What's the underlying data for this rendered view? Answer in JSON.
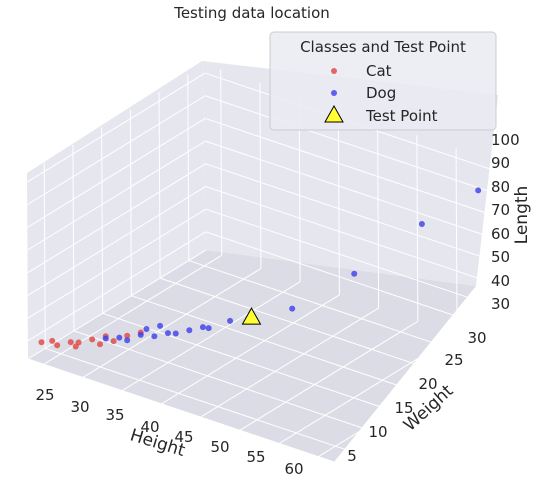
{
  "chart_data": {
    "type": "scatter",
    "projection": "3d",
    "title": "Testing data location",
    "xlabel": "Height",
    "ylabel": "Weight",
    "zlabel": "Length",
    "x_ticks": [
      "25",
      "30",
      "35",
      "40",
      "45",
      "50",
      "55",
      "60"
    ],
    "y_ticks": [
      "5",
      "10",
      "15",
      "20",
      "25",
      "30"
    ],
    "z_ticks": [
      "30",
      "40",
      "50",
      "60",
      "70",
      "80",
      "90",
      "100"
    ],
    "xlim": [
      23,
      62
    ],
    "ylim": [
      2,
      33
    ],
    "zlim": [
      22,
      104
    ],
    "grid": true,
    "legend": {
      "title": "Classes and Test Point",
      "position": "top-right",
      "entries": [
        "Cat",
        "Dog",
        "Test Point"
      ]
    },
    "series": [
      {
        "name": "Cat",
        "color": "#e0453f",
        "marker": "circle",
        "points": [
          {
            "x": 24,
            "y": 3,
            "z": 29
          },
          {
            "x": 25,
            "y": 3.5,
            "z": 30
          },
          {
            "x": 26,
            "y": 3,
            "z": 30
          },
          {
            "x": 27,
            "y": 4,
            "z": 31
          },
          {
            "x": 28,
            "y": 4,
            "z": 32
          },
          {
            "x": 28,
            "y": 3.5,
            "z": 31
          },
          {
            "x": 29,
            "y": 5,
            "z": 33
          },
          {
            "x": 30,
            "y": 5,
            "z": 32
          },
          {
            "x": 30,
            "y": 6,
            "z": 34
          },
          {
            "x": 31,
            "y": 6,
            "z": 33
          },
          {
            "x": 32,
            "y": 7,
            "z": 35
          },
          {
            "x": 33,
            "y": 8,
            "z": 36
          }
        ]
      },
      {
        "name": "Dog",
        "color": "#3a3ee8",
        "marker": "circle",
        "points": [
          {
            "x": 30,
            "y": 6,
            "z": 33
          },
          {
            "x": 31,
            "y": 7,
            "z": 33
          },
          {
            "x": 32,
            "y": 7,
            "z": 33
          },
          {
            "x": 33,
            "y": 9,
            "z": 36
          },
          {
            "x": 33,
            "y": 8,
            "z": 35
          },
          {
            "x": 34,
            "y": 9,
            "z": 34
          },
          {
            "x": 34,
            "y": 10,
            "z": 37
          },
          {
            "x": 35,
            "y": 10,
            "z": 35
          },
          {
            "x": 36,
            "y": 10,
            "z": 36
          },
          {
            "x": 37,
            "y": 11,
            "z": 37
          },
          {
            "x": 38,
            "y": 12,
            "z": 38
          },
          {
            "x": 38,
            "y": 13,
            "z": 36
          },
          {
            "x": 40,
            "y": 14,
            "z": 40
          },
          {
            "x": 45,
            "y": 18,
            "z": 45
          },
          {
            "x": 50,
            "y": 22,
            "z": 60
          },
          {
            "x": 55,
            "y": 27,
            "z": 80
          },
          {
            "x": 60,
            "y": 30,
            "z": 96
          }
        ]
      },
      {
        "name": "Test Point",
        "color": "#ffff33",
        "marker": "triangle",
        "points": [
          {
            "x": 42,
            "y": 15,
            "z": 42
          }
        ]
      }
    ]
  }
}
